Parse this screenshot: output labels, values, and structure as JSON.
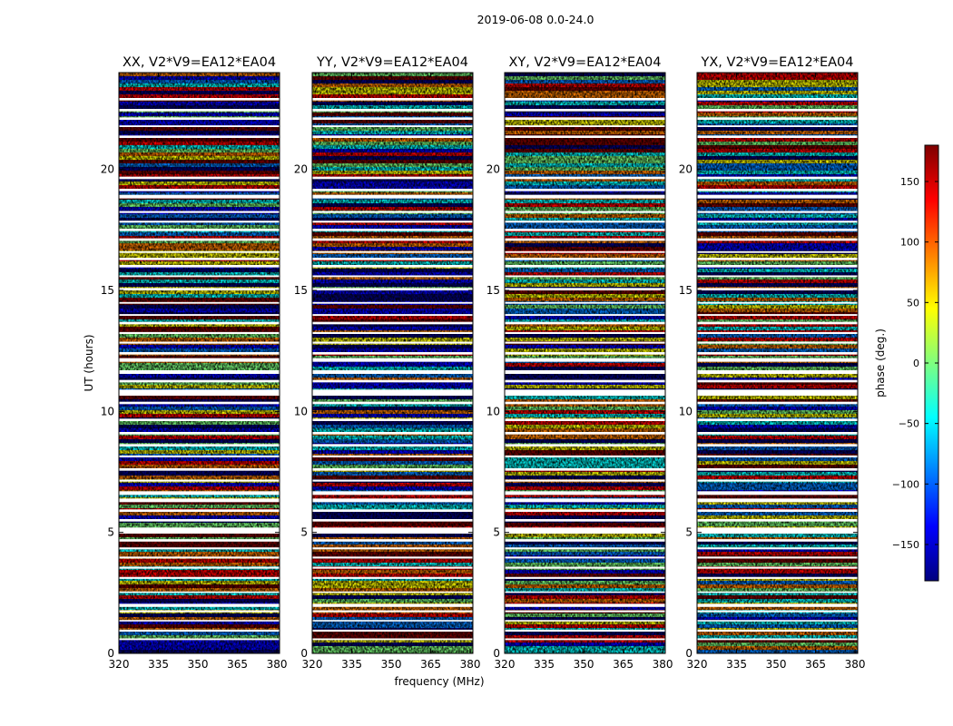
{
  "chart_data": {
    "type": "heatmap",
    "suptitle": "2019-06-08 0.0-24.0",
    "xlabel": "frequency (MHz)",
    "ylabel": "UT (hours)",
    "xlim": [
      320,
      381
    ],
    "ylim": [
      0,
      24
    ],
    "xticks": [
      320,
      335,
      350,
      365,
      380
    ],
    "yticks": [
      0,
      5,
      10,
      15,
      20
    ],
    "panels": [
      {
        "title": "XX, V2*V9=EA12*EA04"
      },
      {
        "title": "YY, V2*V9=EA12*EA04"
      },
      {
        "title": "XY, V2*V9=EA12*EA04"
      },
      {
        "title": "YX, V2*V9=EA12*EA04"
      }
    ],
    "flagged_ut_gaps": [
      [
        0.55,
        0.62
      ],
      [
        0.9,
        0.98
      ],
      [
        1.32,
        1.38
      ],
      [
        1.7,
        1.78
      ],
      [
        1.92,
        2.05
      ],
      [
        2.5,
        2.56
      ],
      [
        3.08,
        3.16
      ],
      [
        3.5,
        3.58
      ],
      [
        3.92,
        4.0
      ],
      [
        4.3,
        4.38
      ],
      [
        4.62,
        4.72
      ],
      [
        4.95,
        5.2
      ],
      [
        5.45,
        5.55
      ],
      [
        5.85,
        5.95
      ],
      [
        6.25,
        6.4
      ],
      [
        6.55,
        6.7
      ],
      [
        7.1,
        7.18
      ],
      [
        7.55,
        7.65
      ],
      [
        8.1,
        8.18
      ],
      [
        8.55,
        8.65
      ],
      [
        9.05,
        9.15
      ],
      [
        9.6,
        9.7
      ],
      [
        10.3,
        10.4
      ],
      [
        10.65,
        10.9
      ],
      [
        11.2,
        11.3
      ],
      [
        11.55,
        11.7
      ],
      [
        12.05,
        12.2
      ],
      [
        12.35,
        12.45
      ],
      [
        12.8,
        12.88
      ],
      [
        13.2,
        13.28
      ],
      [
        13.6,
        13.7
      ],
      [
        13.95,
        14.02
      ],
      [
        14.45,
        14.52
      ],
      [
        15.0,
        15.1
      ],
      [
        15.55,
        15.62
      ],
      [
        15.95,
        16.05
      ],
      [
        16.25,
        16.35
      ],
      [
        16.55,
        16.62
      ],
      [
        17.05,
        17.15
      ],
      [
        17.45,
        17.55
      ],
      [
        17.8,
        17.88
      ],
      [
        18.2,
        18.28
      ],
      [
        18.8,
        18.95
      ],
      [
        19.1,
        19.2
      ],
      [
        19.6,
        19.7
      ],
      [
        21.3,
        21.4
      ],
      [
        21.75,
        21.82
      ],
      [
        22.05,
        22.15
      ],
      [
        22.4,
        22.5
      ],
      [
        22.85,
        22.95
      ]
    ],
    "colorbar": {
      "label": "phase (deg.)",
      "range": [
        -180,
        180
      ],
      "ticks": [
        150,
        100,
        50,
        0,
        -50,
        -100,
        -150
      ],
      "tick_labels": [
        "150",
        "100",
        "50",
        "0",
        "−50",
        "−100",
        "−150"
      ],
      "colormap": "jet"
    },
    "colors": {
      "jet": [
        "#00007f",
        "#0000ff",
        "#007fff",
        "#00ffff",
        "#7fff7f",
        "#ffff00",
        "#ff7f00",
        "#ff0000",
        "#7f0000"
      ]
    }
  }
}
